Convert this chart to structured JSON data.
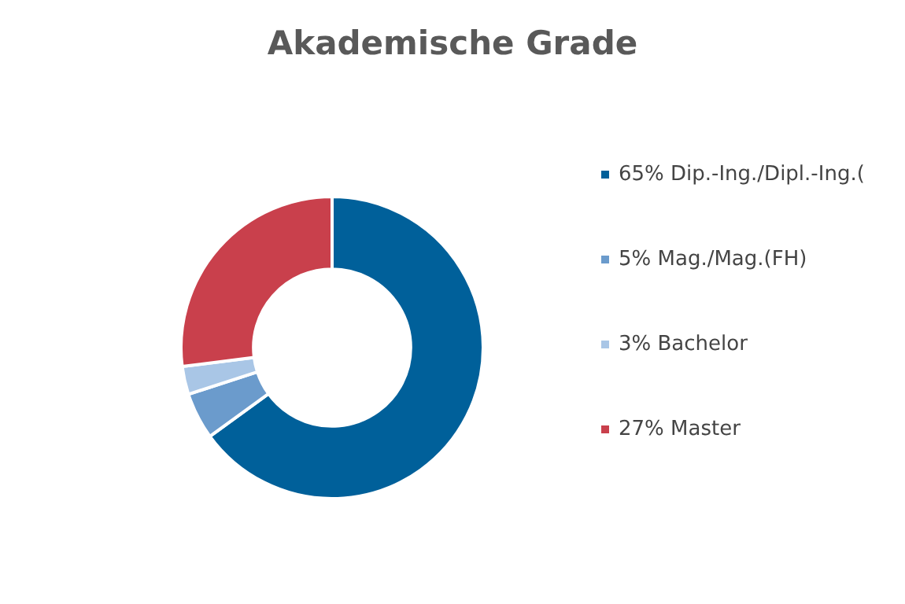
{
  "chart_data": {
    "type": "donut",
    "title": "Akademische Grade",
    "categories": [
      "Dip.-Ing./Dipl.-Ing.(",
      "Mag./Mag.(FH)",
      "Bachelor",
      "Master"
    ],
    "values": [
      65,
      5,
      3,
      27
    ],
    "value_labels": [
      "65%",
      "5%",
      "3%",
      "27%"
    ],
    "colors": [
      "#00609a",
      "#6b9bcc",
      "#a9c6e6",
      "#c9404c"
    ],
    "legend": "right"
  }
}
